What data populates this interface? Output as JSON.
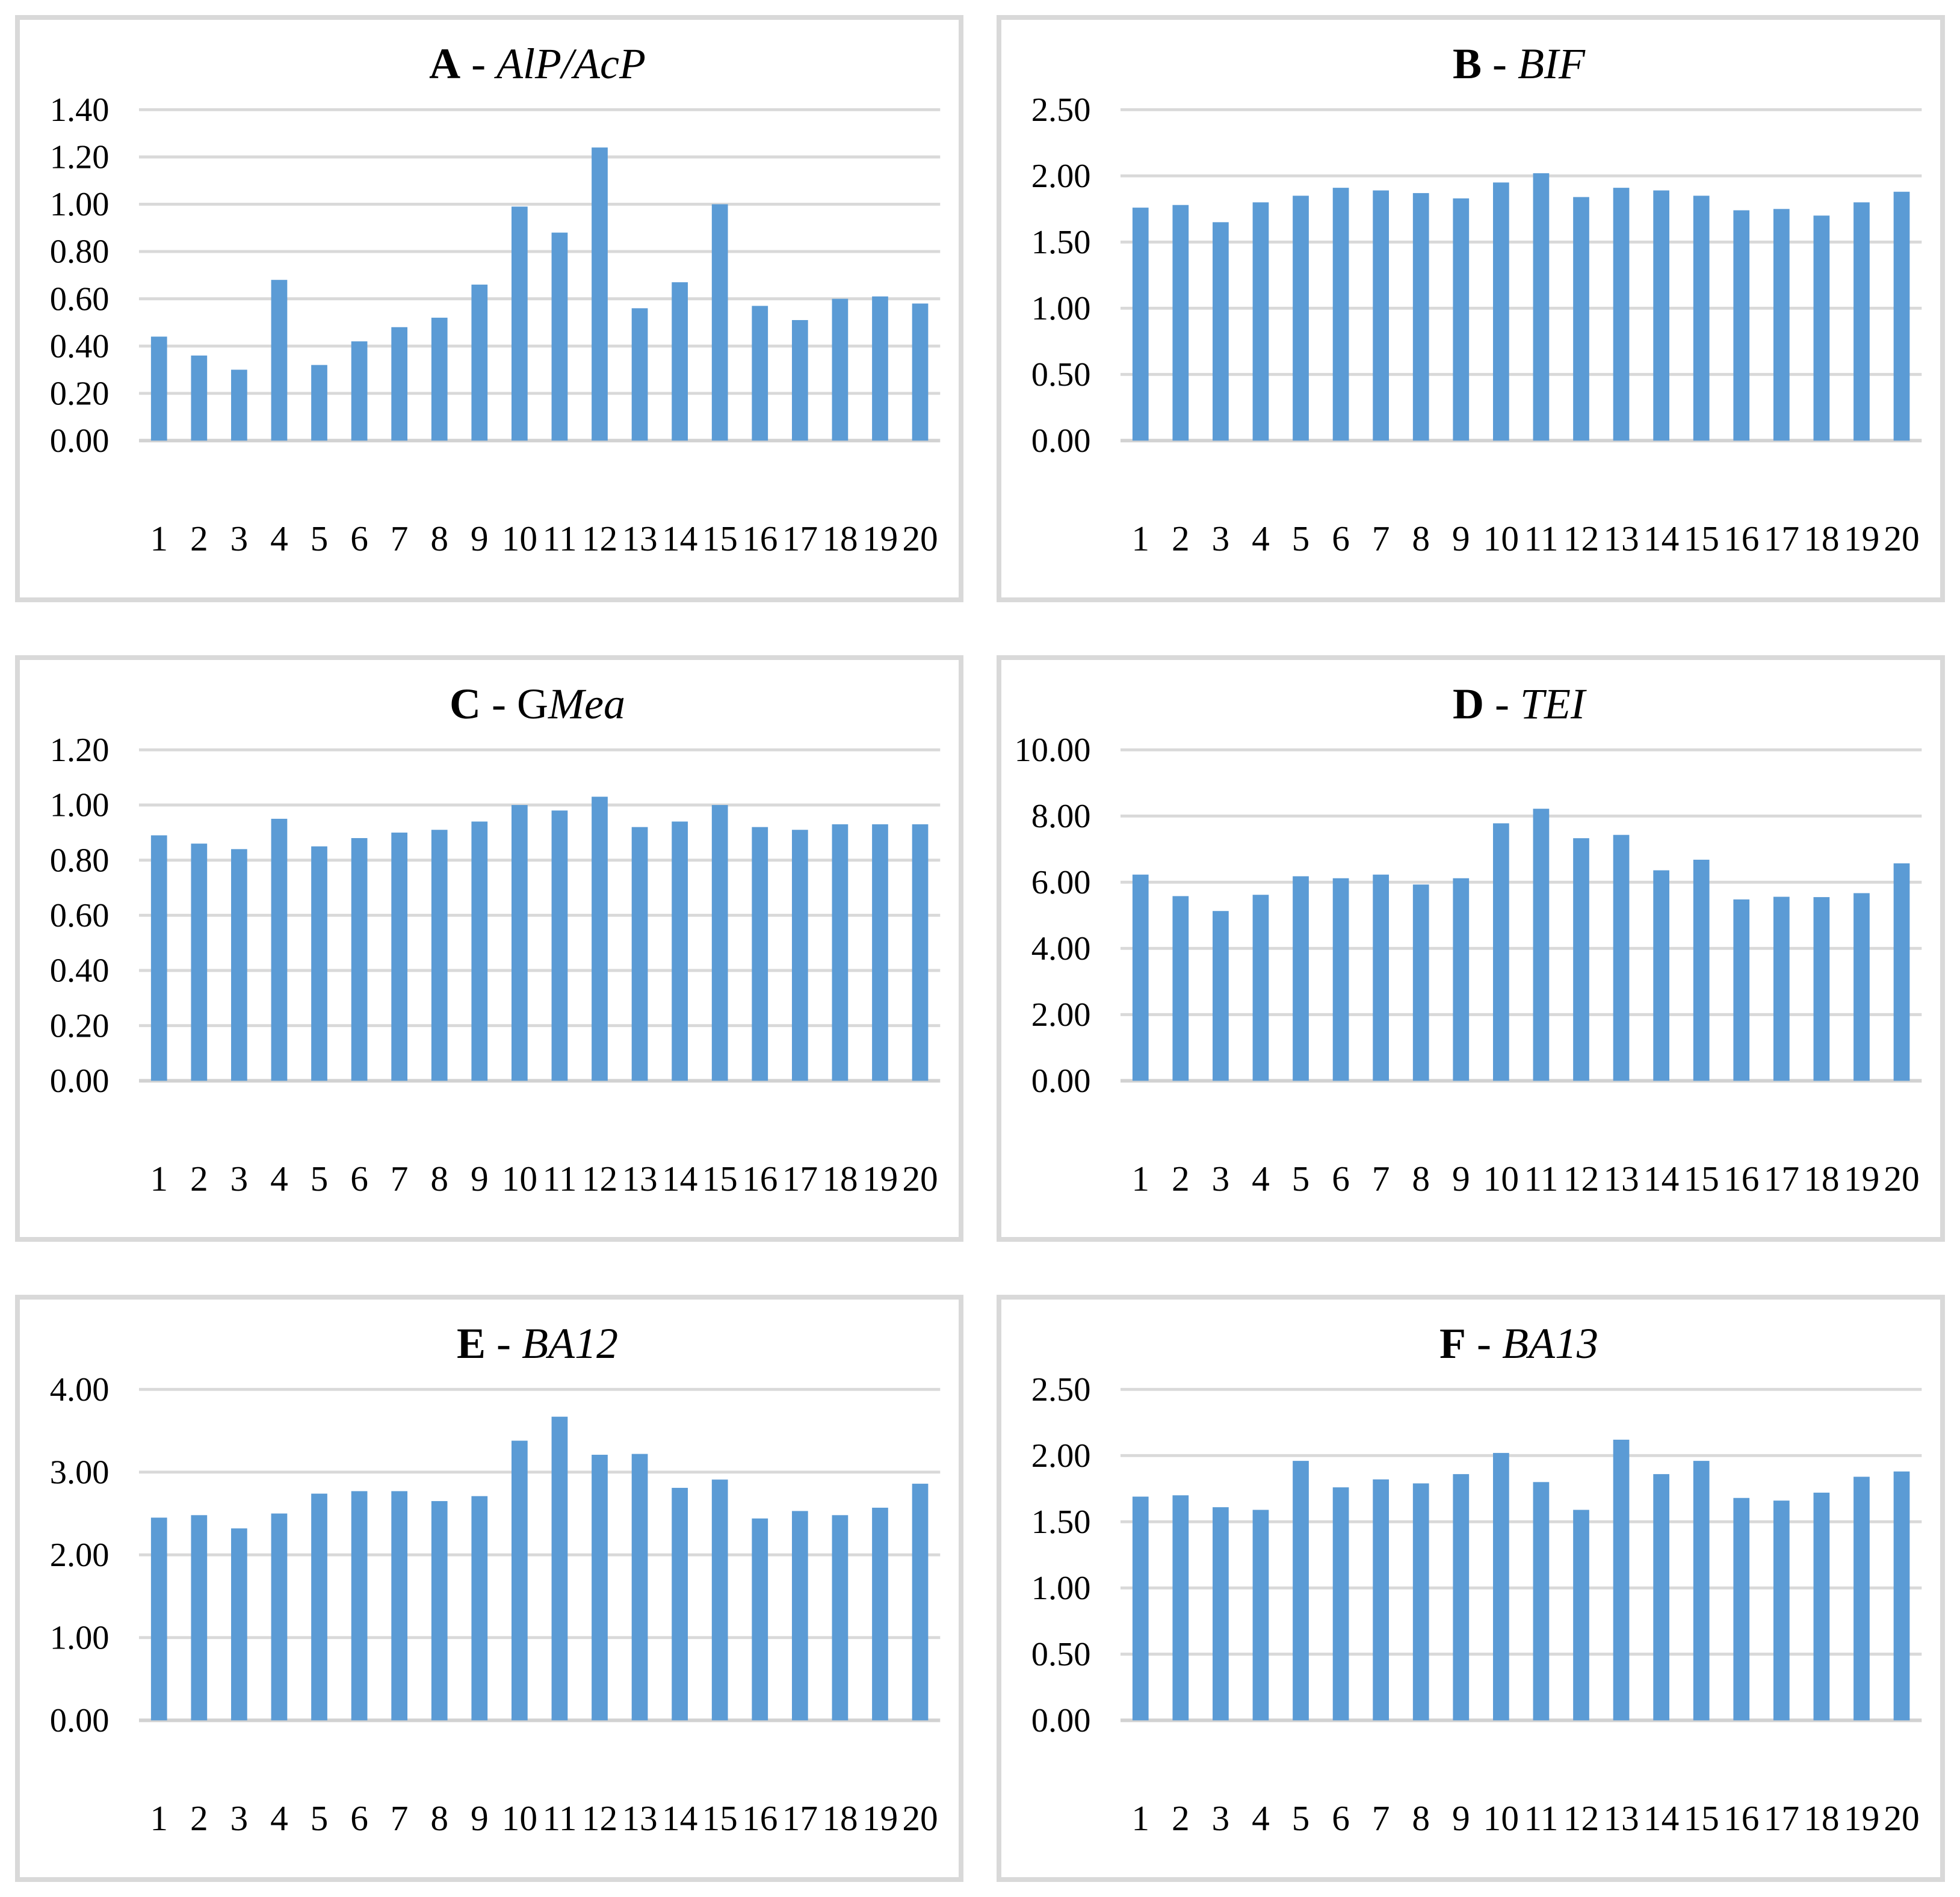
{
  "style": {
    "bar_color": "#5b9bd5",
    "gridline_color": "#d9d9d9",
    "axis_color": "#d2d2d2",
    "panel_border_color": "#d9d9d9",
    "text_color": "#000000",
    "background_color": "#ffffff"
  },
  "chart_data": [
    {
      "id": "A",
      "type": "bar",
      "title_letter": "A",
      "title_sep": " - ",
      "title_name_regular": "",
      "title_name_italic": "AlP/AcP",
      "categories": [
        "1",
        "2",
        "3",
        "4",
        "5",
        "6",
        "7",
        "8",
        "9",
        "10",
        "11",
        "12",
        "13",
        "14",
        "15",
        "16",
        "17",
        "18",
        "19",
        "20"
      ],
      "values": [
        0.44,
        0.36,
        0.3,
        0.68,
        0.32,
        0.42,
        0.48,
        0.52,
        0.66,
        0.99,
        0.88,
        1.24,
        0.56,
        0.67,
        1.0,
        0.57,
        0.51,
        0.6,
        0.61,
        0.58
      ],
      "xlabel": "",
      "ylabel": "",
      "ylim": [
        0,
        1.4
      ],
      "ytick_step": 0.2,
      "ytick_labels": [
        "0.00",
        "0.20",
        "0.40",
        "0.60",
        "0.80",
        "1.00",
        "1.20",
        "1.40"
      ],
      "grid": true,
      "legend": "none"
    },
    {
      "id": "B",
      "type": "bar",
      "title_letter": "B",
      "title_sep": " - ",
      "title_name_regular": "",
      "title_name_italic": "BIF",
      "categories": [
        "1",
        "2",
        "3",
        "4",
        "5",
        "6",
        "7",
        "8",
        "9",
        "10",
        "11",
        "12",
        "13",
        "14",
        "15",
        "16",
        "17",
        "18",
        "19",
        "20"
      ],
      "values": [
        1.76,
        1.78,
        1.65,
        1.8,
        1.85,
        1.91,
        1.89,
        1.87,
        1.83,
        1.95,
        2.02,
        1.84,
        1.91,
        1.89,
        1.85,
        1.74,
        1.75,
        1.7,
        1.8,
        1.88
      ],
      "xlabel": "",
      "ylabel": "",
      "ylim": [
        0,
        2.5
      ],
      "ytick_step": 0.5,
      "ytick_labels": [
        "0.00",
        "0.50",
        "1.00",
        "1.50",
        "2.00",
        "2.50"
      ],
      "grid": true,
      "legend": "none"
    },
    {
      "id": "C",
      "type": "bar",
      "title_letter": "C",
      "title_sep": " - ",
      "title_name_regular": "G",
      "title_name_italic": "Mea",
      "categories": [
        "1",
        "2",
        "3",
        "4",
        "5",
        "6",
        "7",
        "8",
        "9",
        "10",
        "11",
        "12",
        "13",
        "14",
        "15",
        "16",
        "17",
        "18",
        "19",
        "20"
      ],
      "values": [
        0.89,
        0.86,
        0.84,
        0.95,
        0.85,
        0.88,
        0.9,
        0.91,
        0.94,
        1.0,
        0.98,
        1.03,
        0.92,
        0.94,
        1.0,
        0.92,
        0.91,
        0.93,
        0.93,
        0.93
      ],
      "xlabel": "",
      "ylabel": "",
      "ylim": [
        0,
        1.2
      ],
      "ytick_step": 0.2,
      "ytick_labels": [
        "0.00",
        "0.20",
        "0.40",
        "0.60",
        "0.80",
        "1.00",
        "1.20"
      ],
      "grid": true,
      "legend": "none"
    },
    {
      "id": "D",
      "type": "bar",
      "title_letter": "D",
      "title_sep": " - ",
      "title_name_regular": "",
      "title_name_italic": "TEI",
      "categories": [
        "1",
        "2",
        "3",
        "4",
        "5",
        "6",
        "7",
        "8",
        "9",
        "10",
        "11",
        "12",
        "13",
        "14",
        "15",
        "16",
        "17",
        "18",
        "19",
        "20"
      ],
      "values": [
        6.23,
        5.58,
        5.13,
        5.62,
        6.18,
        6.12,
        6.23,
        5.93,
        6.12,
        7.78,
        8.22,
        7.33,
        7.43,
        6.36,
        6.68,
        5.48,
        5.56,
        5.55,
        5.67,
        6.57
      ],
      "xlabel": "",
      "ylabel": "",
      "ylim": [
        0,
        10.0
      ],
      "ytick_step": 2.0,
      "ytick_labels": [
        "0.00",
        "2.00",
        "4.00",
        "6.00",
        "8.00",
        "10.00"
      ],
      "grid": true,
      "legend": "none"
    },
    {
      "id": "E",
      "type": "bar",
      "title_letter": "E",
      "title_sep": " - ",
      "title_name_regular": "",
      "title_name_italic": "BA12",
      "categories": [
        "1",
        "2",
        "3",
        "4",
        "5",
        "6",
        "7",
        "8",
        "9",
        "10",
        "11",
        "12",
        "13",
        "14",
        "15",
        "16",
        "17",
        "18",
        "19",
        "20"
      ],
      "values": [
        2.45,
        2.48,
        2.32,
        2.5,
        2.74,
        2.77,
        2.77,
        2.65,
        2.71,
        3.38,
        3.67,
        3.21,
        3.22,
        2.81,
        2.91,
        2.44,
        2.53,
        2.48,
        2.57,
        2.86
      ],
      "xlabel": "",
      "ylabel": "",
      "ylim": [
        0,
        4.0
      ],
      "ytick_step": 1.0,
      "ytick_labels": [
        "0.00",
        "1.00",
        "2.00",
        "3.00",
        "4.00"
      ],
      "grid": true,
      "legend": "none"
    },
    {
      "id": "F",
      "type": "bar",
      "title_letter": "F",
      "title_sep": " - ",
      "title_name_regular": "",
      "title_name_italic": "BA13",
      "categories": [
        "1",
        "2",
        "3",
        "4",
        "5",
        "6",
        "7",
        "8",
        "9",
        "10",
        "11",
        "12",
        "13",
        "14",
        "15",
        "16",
        "17",
        "18",
        "19",
        "20"
      ],
      "values": [
        1.69,
        1.7,
        1.61,
        1.59,
        1.96,
        1.76,
        1.82,
        1.79,
        1.86,
        2.02,
        1.8,
        1.59,
        2.12,
        1.86,
        1.96,
        1.68,
        1.66,
        1.72,
        1.84,
        1.88
      ],
      "xlabel": "",
      "ylabel": "",
      "ylim": [
        0,
        2.5
      ],
      "ytick_step": 0.5,
      "ytick_labels": [
        "0.00",
        "0.50",
        "1.00",
        "1.50",
        "2.00",
        "2.50"
      ],
      "grid": true,
      "legend": "none"
    }
  ]
}
